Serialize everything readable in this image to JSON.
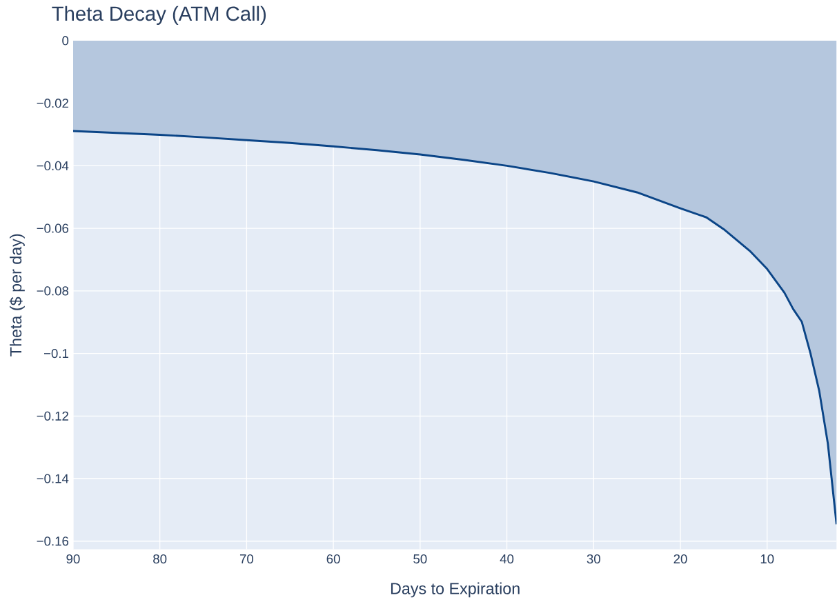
{
  "chart_data": {
    "type": "area",
    "title": "Theta Decay (ATM Call)",
    "xlabel": "Days to Expiration",
    "ylabel": "Theta ($ per day)",
    "x": [
      90,
      85,
      80,
      75,
      70,
      65,
      60,
      55,
      50,
      45,
      40,
      35,
      30,
      25,
      20,
      17,
      15,
      12,
      10,
      8,
      7,
      6,
      5,
      4,
      3,
      2
    ],
    "series": [
      {
        "color": "#0b4587",
        "values": [
          -0.0289,
          -0.0295,
          -0.0301,
          -0.0309,
          -0.0318,
          -0.0327,
          -0.0338,
          -0.035,
          -0.0364,
          -0.0381,
          -0.04,
          -0.0423,
          -0.045,
          -0.0485,
          -0.0536,
          -0.0565,
          -0.0603,
          -0.0672,
          -0.073,
          -0.0806,
          -0.0858,
          -0.0899,
          -0.1,
          -0.1119,
          -0.1288,
          -0.1546
        ]
      }
    ],
    "xlim": [
      90,
      2
    ],
    "ylim": [
      -0.1626,
      0
    ],
    "xticks": [
      90,
      80,
      70,
      60,
      50,
      40,
      30,
      20,
      10
    ],
    "yticks": [
      0,
      {
        "value": -0.02,
        "label": "−0.02"
      },
      {
        "value": -0.04,
        "label": "−0.04"
      },
      {
        "value": -0.06,
        "label": "−0.06"
      },
      {
        "value": -0.08,
        "label": "−0.08"
      },
      {
        "value": -0.1,
        "label": "−0.1"
      },
      {
        "value": -0.12,
        "label": "−0.12"
      },
      {
        "value": -0.14,
        "label": "−0.14"
      },
      {
        "value": -0.16,
        "label": "−0.16"
      }
    ],
    "grid": true,
    "marker": "none",
    "line_style": "solid"
  }
}
